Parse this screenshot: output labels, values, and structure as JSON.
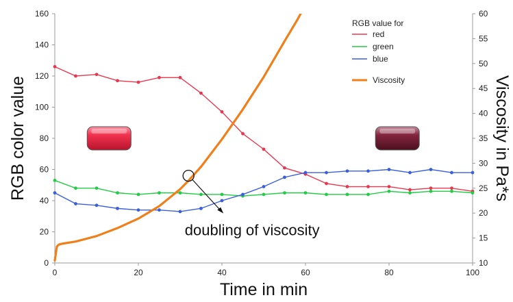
{
  "chart_data": {
    "type": "line",
    "xlabel": "Time in min",
    "ylabel": "RGB color value",
    "y2label": "Viscosity in Pa*s",
    "xlim": [
      0,
      100
    ],
    "ylim": [
      0,
      160
    ],
    "y2lim": [
      10,
      60
    ],
    "xticks": [
      0,
      20,
      40,
      60,
      80,
      100
    ],
    "yticks": [
      0,
      20,
      40,
      60,
      80,
      100,
      120,
      140,
      160
    ],
    "y2ticks": [
      10,
      15,
      20,
      25,
      30,
      35,
      40,
      45,
      50,
      55,
      60
    ],
    "grid": false,
    "legend_title": "RGB value for",
    "legend_position": "top-right",
    "series": [
      {
        "name": "red",
        "axis": "left",
        "color": "#e8384f",
        "x": [
          0,
          5,
          10,
          15,
          20,
          25,
          30,
          35,
          40,
          45,
          50,
          55,
          60,
          65,
          70,
          75,
          80,
          85,
          90,
          95,
          100
        ],
        "y": [
          126,
          120,
          121,
          117,
          116,
          119,
          119,
          109,
          97,
          83,
          73,
          61,
          57,
          51,
          49,
          49,
          49,
          47,
          48,
          48,
          46
        ]
      },
      {
        "name": "green",
        "axis": "left",
        "color": "#22cc44",
        "x": [
          0,
          5,
          10,
          15,
          20,
          25,
          30,
          35,
          40,
          45,
          50,
          55,
          60,
          65,
          70,
          75,
          80,
          85,
          90,
          95,
          100
        ],
        "y": [
          53,
          48,
          48,
          45,
          44,
          45,
          45,
          44,
          44,
          43,
          44,
          45,
          45,
          44,
          44,
          44,
          46,
          45,
          46,
          46,
          45
        ]
      },
      {
        "name": "blue",
        "axis": "left",
        "color": "#3a5fd9",
        "x": [
          0,
          5,
          10,
          15,
          20,
          25,
          30,
          35,
          40,
          45,
          50,
          55,
          60,
          65,
          70,
          75,
          80,
          85,
          90,
          95,
          100
        ],
        "y": [
          45,
          38,
          37,
          35,
          34,
          34,
          33,
          35,
          40,
          44,
          49,
          55,
          58,
          58,
          59,
          59,
          60,
          58,
          60,
          58,
          58
        ]
      },
      {
        "name": "Viscosity",
        "axis": "right",
        "color": "#f07f1a",
        "x": [
          0,
          0.5,
          1,
          2,
          5,
          10,
          15,
          20,
          25,
          30,
          32,
          35,
          40,
          45,
          50,
          55,
          58,
          60.8
        ],
        "y": [
          10.5,
          13.3,
          13.7,
          13.9,
          14.3,
          15.4,
          17.0,
          18.9,
          21.4,
          24.8,
          26.5,
          29.3,
          34.8,
          40.8,
          47.3,
          54.5,
          58.7,
          63
        ]
      }
    ],
    "annotation": {
      "text": "doubling of viscosity",
      "x": 32,
      "y2": 27.5
    },
    "swatches": [
      {
        "name": "initial-color",
        "color": "#e8284a",
        "x": 13,
        "y": 80
      },
      {
        "name": "final-color",
        "color": "#7a1e34",
        "x": 82,
        "y": 80
      }
    ]
  }
}
